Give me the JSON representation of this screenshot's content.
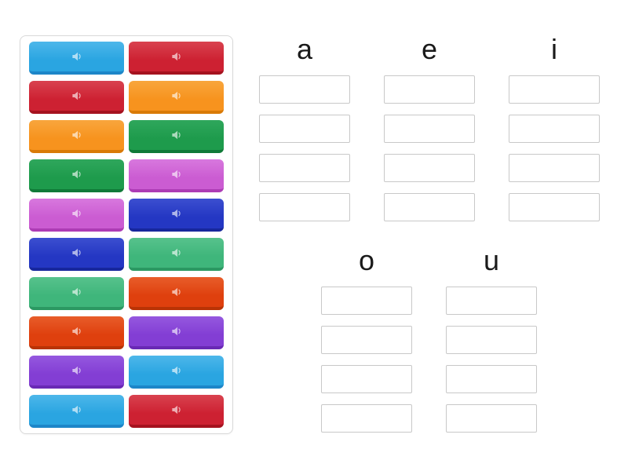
{
  "stage": {
    "background": "#ffffff",
    "panel_border": "#d9d9d9"
  },
  "palette": {
    "lightblue": {
      "top": "#4db7ea",
      "base": "#2aa5e1",
      "edge": "#1d86c8"
    },
    "red": {
      "top": "#d9424f",
      "base": "#cd2132",
      "edge": "#a5121f"
    },
    "orange": {
      "top": "#f8a63d",
      "base": "#f7931e",
      "edge": "#d97a07"
    },
    "green": {
      "top": "#2fa75c",
      "base": "#1e9b4c",
      "edge": "#107a38"
    },
    "orchid": {
      "top": "#d878de",
      "base": "#cb5cd2",
      "edge": "#ad3cb5"
    },
    "royalblue": {
      "top": "#3c4fd0",
      "base": "#2437c3",
      "edge": "#17279c"
    },
    "seagreen": {
      "top": "#57c28c",
      "base": "#3fb67b",
      "edge": "#2b9862"
    },
    "orangered": {
      "top": "#e85d2a",
      "base": "#df400e",
      "edge": "#b93305"
    },
    "purple": {
      "top": "#9558df",
      "base": "#833ed4",
      "edge": "#6929b5"
    }
  },
  "tile_panel": {
    "tiles": [
      {
        "icon": "speaker-icon",
        "color": "lightblue"
      },
      {
        "icon": "speaker-icon",
        "color": "red"
      },
      {
        "icon": "speaker-icon",
        "color": "red"
      },
      {
        "icon": "speaker-icon",
        "color": "orange"
      },
      {
        "icon": "speaker-icon",
        "color": "orange"
      },
      {
        "icon": "speaker-icon",
        "color": "green"
      },
      {
        "icon": "speaker-icon",
        "color": "green"
      },
      {
        "icon": "speaker-icon",
        "color": "orchid"
      },
      {
        "icon": "speaker-icon",
        "color": "orchid"
      },
      {
        "icon": "speaker-icon",
        "color": "royalblue"
      },
      {
        "icon": "speaker-icon",
        "color": "royalblue"
      },
      {
        "icon": "speaker-icon",
        "color": "seagreen"
      },
      {
        "icon": "speaker-icon",
        "color": "seagreen"
      },
      {
        "icon": "speaker-icon",
        "color": "orangered"
      },
      {
        "icon": "speaker-icon",
        "color": "orangered"
      },
      {
        "icon": "speaker-icon",
        "color": "purple"
      },
      {
        "icon": "speaker-icon",
        "color": "purple"
      },
      {
        "icon": "speaker-icon",
        "color": "lightblue"
      },
      {
        "icon": "speaker-icon",
        "color": "lightblue"
      },
      {
        "icon": "speaker-icon",
        "color": "red"
      }
    ]
  },
  "groups": {
    "slot_border_color": "#c8c8c8",
    "label_color": "#1a1a1a",
    "top_row": [
      {
        "label": "a",
        "slots": 4
      },
      {
        "label": "e",
        "slots": 4
      },
      {
        "label": "i",
        "slots": 4
      }
    ],
    "bottom_row": [
      {
        "label": "o",
        "slots": 4
      },
      {
        "label": "u",
        "slots": 4
      }
    ]
  }
}
